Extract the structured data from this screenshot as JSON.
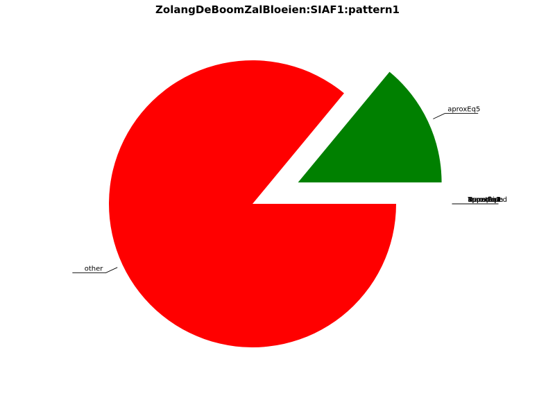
{
  "chart_data": {
    "type": "pie",
    "title": "ZolangDeBoomZalBloeien:SIAF1:pattern1",
    "slices": [
      {
        "label": "other",
        "value": 86.0,
        "color": "#ff0000",
        "explode": false
      },
      {
        "label": "aproxEq5",
        "value": 14.0,
        "color": "#008000",
        "explode": true
      },
      {
        "label": "aproxEq1",
        "value": 0.0,
        "color": "#0000ff",
        "explode": true
      },
      {
        "label": "aproxEq4",
        "value": 0.0,
        "color": "#0000ff",
        "explode": true
      },
      {
        "label": "Imperfect",
        "value": 0.0,
        "color": "#0000ff",
        "explode": true
      },
      {
        "label": "Repetition",
        "value": 0.0,
        "color": "#0000ff",
        "explode": true
      },
      {
        "label": "Transposed",
        "value": 0.0,
        "color": "#0000ff",
        "explode": true
      },
      {
        "label": "aproxEq2",
        "value": 0.0,
        "color": "#0000ff",
        "explode": true
      },
      {
        "label": "aproxEq3",
        "value": 0.0,
        "color": "#0000ff",
        "explode": true
      }
    ],
    "start_angle_deg": 0,
    "direction": "clockwise",
    "legend": "none"
  }
}
